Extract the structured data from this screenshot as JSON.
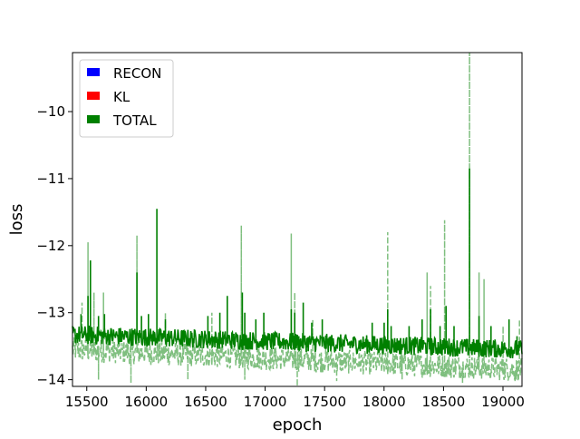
{
  "chart_data": {
    "type": "line",
    "title": "",
    "xlabel": "epoch",
    "ylabel": "loss",
    "xlim": [
      15380,
      19160
    ],
    "ylim": [
      -14.1,
      -9.12
    ],
    "x_ticks": [
      15500,
      16000,
      16500,
      17000,
      17500,
      18000,
      18500,
      19000
    ],
    "x_tick_labels": [
      "15500",
      "16000",
      "16500",
      "17000",
      "17500",
      "18000",
      "18500",
      "19000"
    ],
    "y_ticks": [
      -14,
      -13,
      -12,
      -11,
      -10
    ],
    "y_tick_labels": [
      "−14",
      "−13",
      "−12",
      "−11",
      "−10"
    ],
    "grid": false,
    "legend_position": "top-left",
    "series": [
      {
        "name": "RECON",
        "color": "#0000ff",
        "values": []
      },
      {
        "name": "KL",
        "color": "#ff0000",
        "values": []
      },
      {
        "name": "TOTAL",
        "color": "#008000",
        "style": "solid",
        "base_start": -13.33,
        "base_end": -13.55,
        "band": 0.14,
        "spikes": [
          [
            15450,
            -13.02
          ],
          [
            15510,
            -12.75
          ],
          [
            15530,
            -12.22
          ],
          [
            15600,
            -13.05
          ],
          [
            15650,
            -13.02
          ],
          [
            15920,
            -12.4
          ],
          [
            15960,
            -13.05
          ],
          [
            16020,
            -13.02
          ],
          [
            16090,
            -11.45
          ],
          [
            16160,
            -13.1
          ],
          [
            16520,
            -13.05
          ],
          [
            16620,
            -13.0
          ],
          [
            16680,
            -12.75
          ],
          [
            16810,
            -12.7
          ],
          [
            16830,
            -13.0
          ],
          [
            16920,
            -13.1
          ],
          [
            16990,
            -13.0
          ],
          [
            17220,
            -12.95
          ],
          [
            17250,
            -13.0
          ],
          [
            17320,
            -12.85
          ],
          [
            17390,
            -13.15
          ],
          [
            17480,
            -13.1
          ],
          [
            17900,
            -13.15
          ],
          [
            18000,
            -13.15
          ],
          [
            18030,
            -12.95
          ],
          [
            18060,
            -13.2
          ],
          [
            18210,
            -13.2
          ],
          [
            18320,
            -13.1
          ],
          [
            18390,
            -12.95
          ],
          [
            18470,
            -13.2
          ],
          [
            18520,
            -12.9
          ],
          [
            18590,
            -13.2
          ],
          [
            18720,
            -10.85
          ],
          [
            18800,
            -13.05
          ],
          [
            18900,
            -13.2
          ],
          [
            19050,
            -13.1
          ],
          [
            19120,
            -13.35
          ]
        ]
      },
      {
        "name": "",
        "color": "#008000",
        "style": "dashed",
        "opacity": 0.5,
        "base_start": -13.55,
        "base_end": -13.85,
        "band": 0.18,
        "spikes": [
          [
            15460,
            -12.85
          ],
          [
            15510,
            -11.95
          ],
          [
            15560,
            -12.7
          ],
          [
            15640,
            -12.7
          ],
          [
            15920,
            -11.85
          ],
          [
            16160,
            -13.0
          ],
          [
            16550,
            -13.0
          ],
          [
            16800,
            -11.7
          ],
          [
            16830,
            -12.0
          ],
          [
            17220,
            -11.82
          ],
          [
            17250,
            -12.7
          ],
          [
            17400,
            -13.1
          ],
          [
            18030,
            -11.8
          ],
          [
            18360,
            -12.4
          ],
          [
            18390,
            -12.6
          ],
          [
            18510,
            -11.62
          ],
          [
            18720,
            -9.12
          ],
          [
            18800,
            -12.4
          ],
          [
            18840,
            -12.5
          ],
          [
            19000,
            -13.2
          ],
          [
            19140,
            -13.1
          ]
        ],
        "dips": [
          [
            15600,
            -14.0
          ],
          [
            15870,
            -14.05
          ],
          [
            16350,
            -14.0
          ],
          [
            16830,
            -14.0
          ],
          [
            17270,
            -14.1
          ],
          [
            17600,
            -14.02
          ],
          [
            18150,
            -14.0
          ],
          [
            18660,
            -14.05
          ],
          [
            19100,
            -14.02
          ]
        ]
      }
    ]
  }
}
